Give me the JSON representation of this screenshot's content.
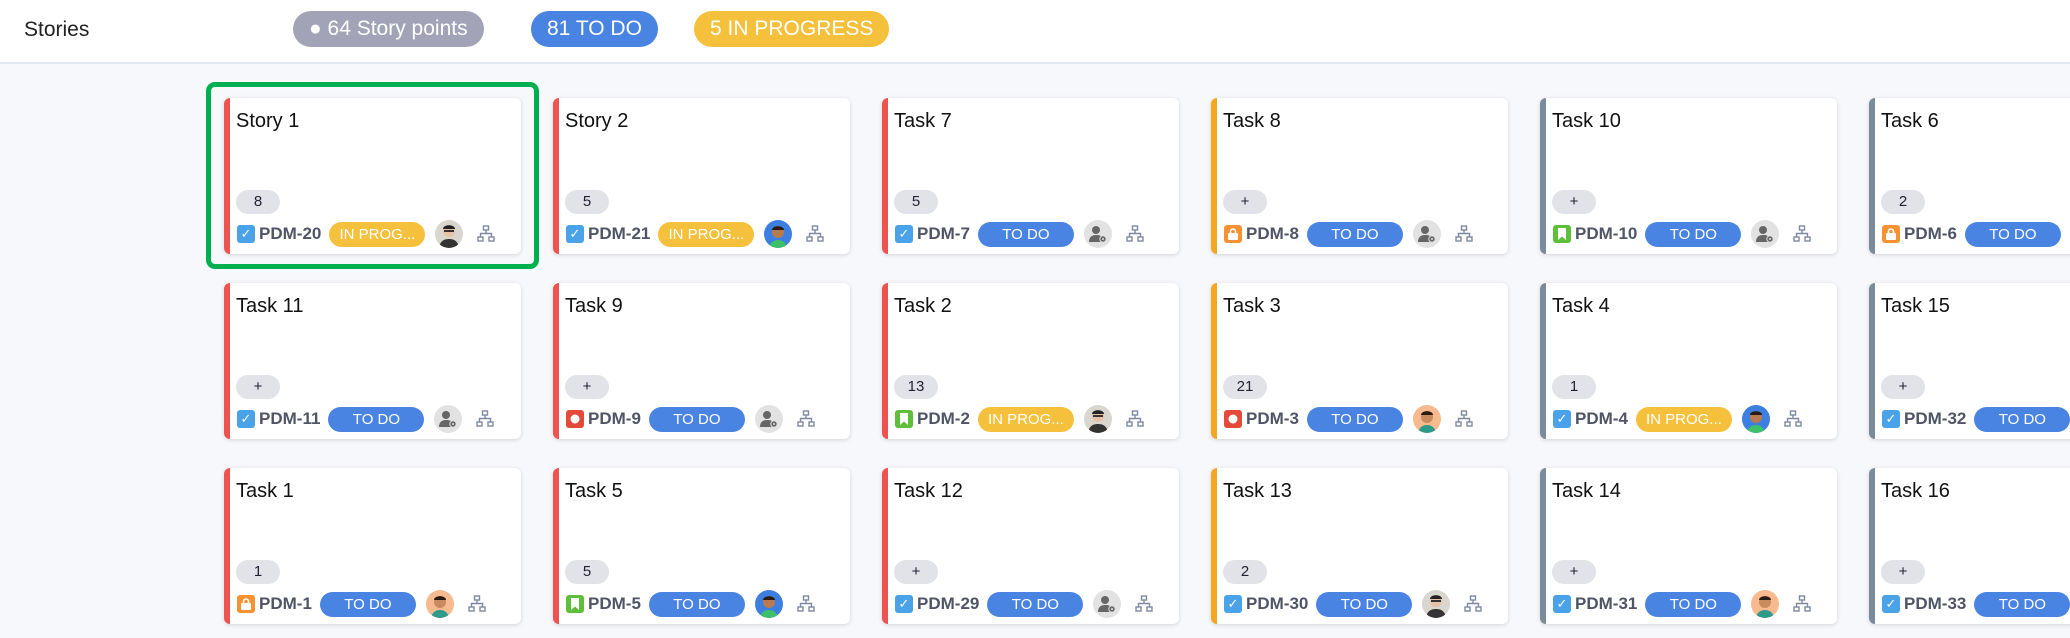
{
  "header": {
    "title": "Stories",
    "badges": {
      "story_points": "● 64 Story points",
      "todo": "81 TO DO",
      "in_progress": "5 IN PROGRESS"
    }
  },
  "colors": {
    "todo": "#4a84e3",
    "in_progress": "#f5c03b",
    "focus": "#00b050",
    "stripe_red": "#ef5350",
    "stripe_orange": "#f5a623",
    "stripe_gray": "#7a8c99"
  },
  "selected_card": "PDM-20",
  "rows": [
    [
      {
        "title": "Story 1",
        "points": "8",
        "type": "task",
        "key": "PDM-20",
        "status": "IN PROG...",
        "avatar": "photo",
        "stripe": "red"
      },
      {
        "title": "Story 2",
        "points": "5",
        "type": "task",
        "key": "PDM-21",
        "status": "IN PROG...",
        "avatar": "cartoon-blue",
        "stripe": "red"
      },
      {
        "title": "Task 7",
        "points": "5",
        "type": "task",
        "key": "PDM-7",
        "status": "TO DO",
        "avatar": "unassigned",
        "stripe": "red"
      },
      {
        "title": "Task 8",
        "points": "+",
        "type": "lock",
        "key": "PDM-8",
        "status": "TO DO",
        "avatar": "unassigned",
        "stripe": "orange"
      },
      {
        "title": "Task 10",
        "points": "+",
        "type": "story",
        "key": "PDM-10",
        "status": "TO DO",
        "avatar": "unassigned",
        "stripe": "gray"
      },
      {
        "title": "Task 6",
        "points": "2",
        "type": "lock",
        "key": "PDM-6",
        "status": "TO DO",
        "avatar": "unassigned",
        "stripe": "gray"
      }
    ],
    [
      {
        "title": "Task 11",
        "points": "+",
        "type": "task",
        "key": "PDM-11",
        "status": "TO DO",
        "avatar": "unassigned",
        "stripe": "red"
      },
      {
        "title": "Task 9",
        "points": "+",
        "type": "bug",
        "key": "PDM-9",
        "status": "TO DO",
        "avatar": "unassigned",
        "stripe": "red"
      },
      {
        "title": "Task 2",
        "points": "13",
        "type": "story",
        "key": "PDM-2",
        "status": "IN PROG...",
        "avatar": "photo",
        "stripe": "red"
      },
      {
        "title": "Task 3",
        "points": "21",
        "type": "bug",
        "key": "PDM-3",
        "status": "TO DO",
        "avatar": "cartoon-orange",
        "stripe": "orange"
      },
      {
        "title": "Task 4",
        "points": "1",
        "type": "task",
        "key": "PDM-4",
        "status": "IN PROG...",
        "avatar": "cartoon-blue",
        "stripe": "gray"
      },
      {
        "title": "Task 15",
        "points": "+",
        "type": "task",
        "key": "PDM-32",
        "status": "TO DO",
        "avatar": "unassigned",
        "stripe": "gray"
      }
    ],
    [
      {
        "title": "Task 1",
        "points": "1",
        "type": "lock",
        "key": "PDM-1",
        "status": "TO DO",
        "avatar": "cartoon-orange",
        "stripe": "red"
      },
      {
        "title": "Task 5",
        "points": "5",
        "type": "story",
        "key": "PDM-5",
        "status": "TO DO",
        "avatar": "cartoon-blue",
        "stripe": "red"
      },
      {
        "title": "Task 12",
        "points": "+",
        "type": "task",
        "key": "PDM-29",
        "status": "TO DO",
        "avatar": "unassigned",
        "stripe": "red"
      },
      {
        "title": "Task 13",
        "points": "2",
        "type": "task",
        "key": "PDM-30",
        "status": "TO DO",
        "avatar": "photo",
        "stripe": "orange"
      },
      {
        "title": "Task 14",
        "points": "+",
        "type": "task",
        "key": "PDM-31",
        "status": "TO DO",
        "avatar": "cartoon-orange",
        "stripe": "gray"
      },
      {
        "title": "Task 16",
        "points": "+",
        "type": "task",
        "key": "PDM-33",
        "status": "TO DO",
        "avatar": "unassigned",
        "stripe": "gray"
      }
    ]
  ]
}
